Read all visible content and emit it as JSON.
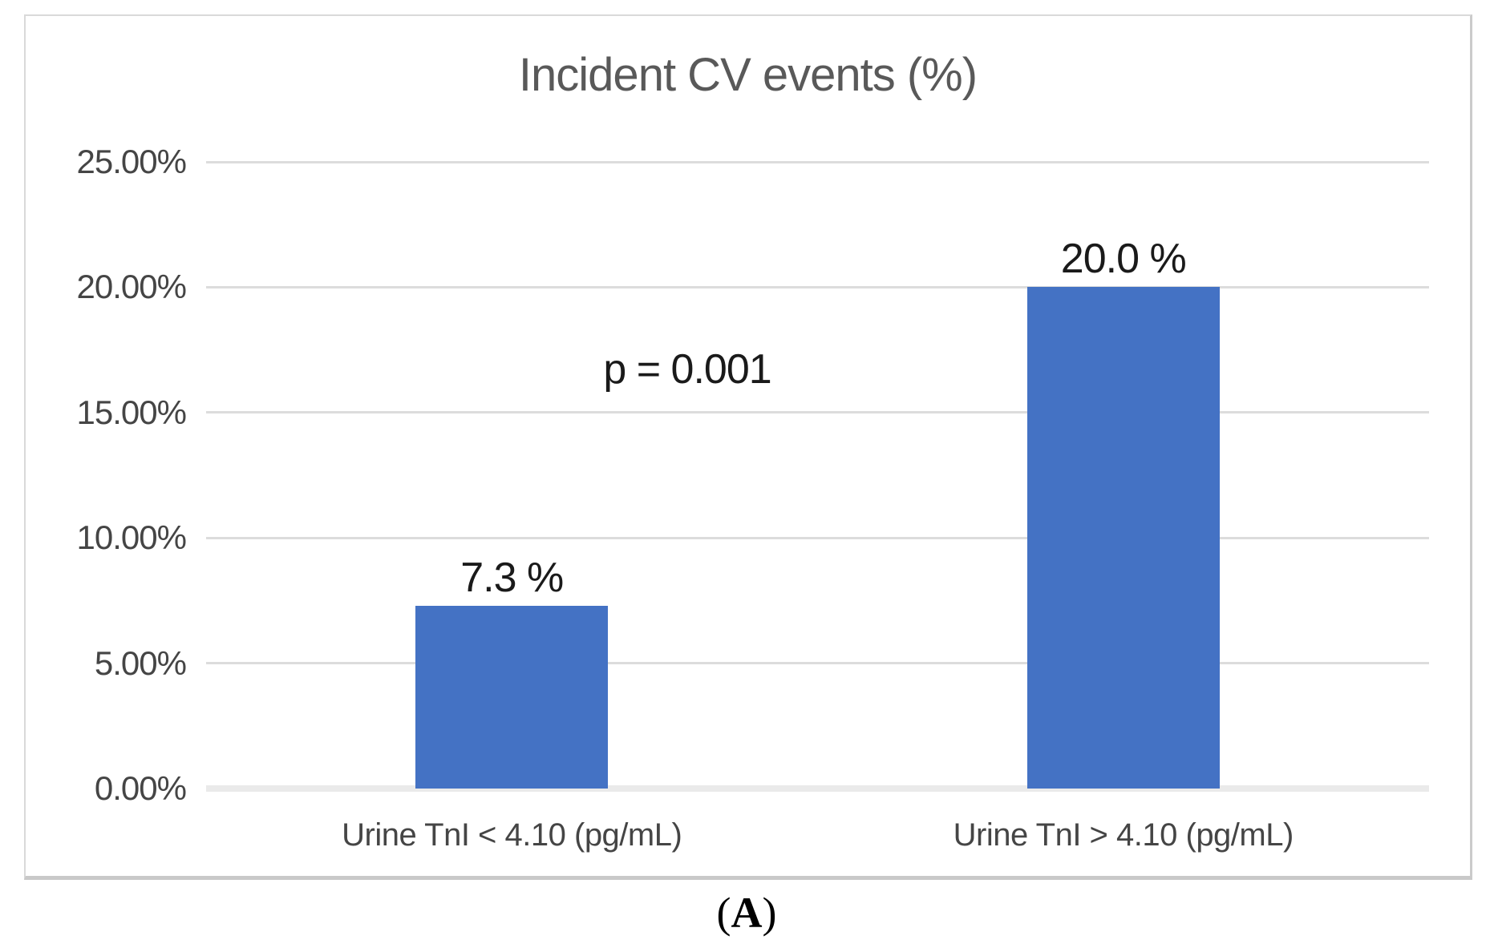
{
  "chart_data": {
    "type": "bar",
    "title": "Incident CV events (%)",
    "categories": [
      "Urine TnI < 4.10 (pg/mL)",
      "Urine TnI > 4.10 (pg/mL)"
    ],
    "values": [
      7.3,
      20.0
    ],
    "value_labels": [
      "7.3 %",
      "20.0 %"
    ],
    "annotation": "p = 0.001",
    "y_ticks": [
      "25.00%",
      "20.00%",
      "15.00%",
      "10.00%",
      "5.00%",
      "0.00%"
    ],
    "ylim": [
      0,
      25
    ],
    "grid": true,
    "legend": "none",
    "colors": {
      "bar": "#4472C4",
      "title": "#595959",
      "axis_text": "#454545",
      "value_text": "#1a1a1a",
      "gridline": "#DCDCDC",
      "baseline": "#EAEAEA",
      "frame_border": "#D9D9D9"
    }
  },
  "caption": {
    "open": "(",
    "letter": "A",
    "close": ")"
  }
}
